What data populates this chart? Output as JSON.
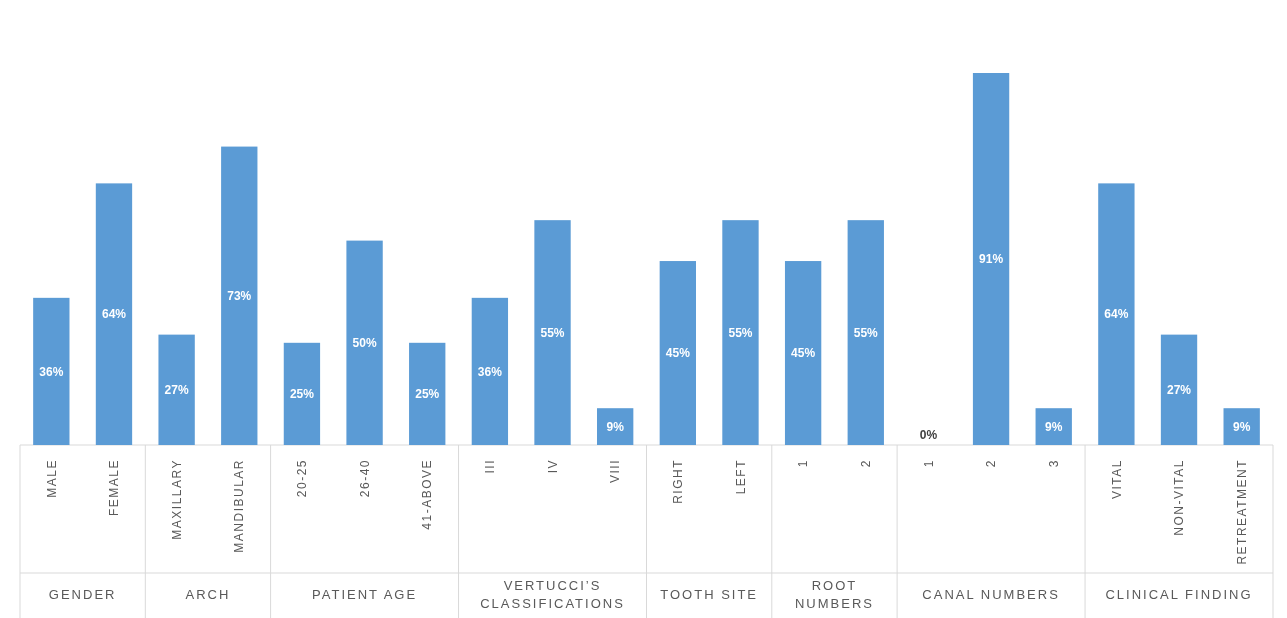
{
  "chart_data": [
    {
      "type": "bar",
      "xlabel": "GENDER",
      "categories": [
        "MALE",
        "FEMALE"
      ],
      "values": [
        36,
        64
      ],
      "color": "#5b9bd5",
      "value_labels": [
        "36%",
        "64%"
      ]
    },
    {
      "type": "bar",
      "xlabel": "ARCH",
      "categories": [
        "MAXILLARY",
        "MANDIBULAR"
      ],
      "values": [
        27,
        73
      ],
      "color": "#5b9bd5",
      "value_labels": [
        "27%",
        "73%"
      ]
    },
    {
      "type": "bar",
      "xlabel": "PATIENT AGE",
      "categories": [
        "20-25",
        "26-40",
        "41-ABOVE"
      ],
      "values": [
        25,
        50,
        25
      ],
      "color": "#5b9bd5",
      "value_labels": [
        "25%",
        "50%",
        "25%"
      ]
    },
    {
      "type": "bar",
      "xlabel": "VERTUCCI’S CLASSIFICATIONS",
      "categories": [
        "III",
        "IV",
        "VIII"
      ],
      "values": [
        36,
        55,
        9
      ],
      "color": "#5b9bd5",
      "value_labels": [
        "36%",
        "55%",
        "9%"
      ]
    },
    {
      "type": "bar",
      "xlabel": "TOOTH SITE",
      "categories": [
        "RIGHT",
        "LEFT"
      ],
      "values": [
        45,
        55
      ],
      "color": "#5b9bd5",
      "value_labels": [
        "45%",
        "55%"
      ]
    },
    {
      "type": "bar",
      "xlabel": "ROOT NUMBERS",
      "categories": [
        "1",
        "2"
      ],
      "values": [
        45,
        55
      ],
      "color": "#5b9bd5",
      "value_labels": [
        "45%",
        "55%"
      ]
    },
    {
      "type": "bar",
      "xlabel": "CANAL NUMBERS",
      "categories": [
        "1",
        "2",
        "3"
      ],
      "values": [
        0,
        91,
        9
      ],
      "color": "#5b9bd5",
      "value_labels": [
        "0%",
        "91%",
        "9%"
      ]
    },
    {
      "type": "bar",
      "xlabel": "CLINICAL FINDING",
      "categories": [
        "VITAL",
        "NON-VITAL",
        "RETREATMENT"
      ],
      "values": [
        64,
        27,
        9
      ],
      "color": "#5b9bd5",
      "value_labels": [
        "64%",
        "27%",
        "9%"
      ]
    }
  ]
}
